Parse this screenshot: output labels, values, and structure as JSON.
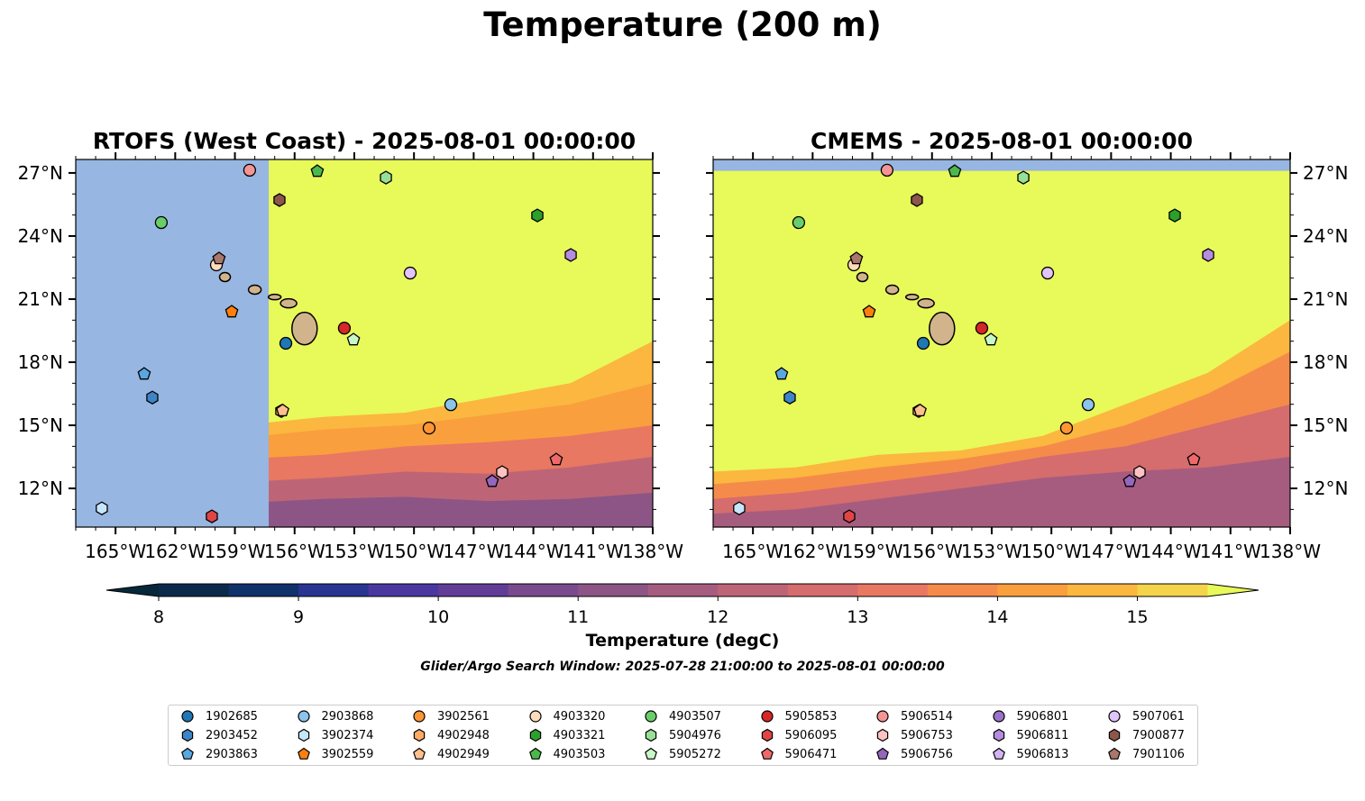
{
  "suptitle": "Temperature (200 m)",
  "panels": [
    {
      "title": "RTOFS (West Coast) - 2025-08-01 00:00:00",
      "model": "RTOFS",
      "missing_west_of_lon": -157.3
    },
    {
      "title": "CMEMS - 2025-08-01 00:00:00",
      "model": "CMEMS",
      "missing_north_of_lat": 27.1
    }
  ],
  "chart_data": {
    "type": "heatmap",
    "title": "Temperature (200 m)",
    "xlabel": "",
    "ylabel": "",
    "xlim": [
      -167.0,
      -138.0
    ],
    "ylim": [
      10.16,
      27.64
    ],
    "x_ticks": [
      -165,
      -162,
      -159,
      -156,
      -153,
      -150,
      -147,
      -144,
      -141,
      -138
    ],
    "x_tick_labels": [
      "165°W",
      "162°W",
      "159°W",
      "156°W",
      "153°W",
      "150°W",
      "147°W",
      "144°W",
      "141°W",
      "138°W"
    ],
    "y_ticks": [
      12,
      15,
      18,
      21,
      24,
      27
    ],
    "y_tick_labels": [
      "12°N",
      "15°N",
      "18°N",
      "21°N",
      "24°N",
      "27°N"
    ],
    "grid": false,
    "colorbar": {
      "label": "Temperature (degC)",
      "min": 8,
      "max": 15.5,
      "step": 0.5,
      "extend": "both",
      "ticks": [
        8,
        9,
        10,
        11,
        12,
        13,
        14,
        15
      ],
      "tick_labels": [
        "8",
        "9",
        "10",
        "11",
        "12",
        "13",
        "14",
        "15"
      ],
      "colors": [
        "#07283a",
        "#0b2a4a",
        "#10326a",
        "#283591",
        "#4a38a0",
        "#613d98",
        "#7a4a8e",
        "#8d5586",
        "#a65c7f",
        "#bd6577",
        "#d56c6d",
        "#e87861",
        "#f58b4b",
        "#fa9f3d",
        "#fbb73f",
        "#f5d34a",
        "#e8f95a"
      ],
      "under_color": "#07283a",
      "over_color": "#e8f95a"
    },
    "land_color": "#d2b48c",
    "missing_color": "#97b6e1",
    "subtitle": "Glider/Argo Search Window: 2025-07-28 21:00:00 to 2025-08-01 00:00:00",
    "series": [
      {
        "name": "1902685",
        "marker": "circle",
        "color": "#1f77b4",
        "lon": -156.44,
        "lat": 18.9
      },
      {
        "name": "2903452",
        "marker": "hexagon",
        "color": "#3d85c6",
        "lon": -163.15,
        "lat": 16.32
      },
      {
        "name": "2903863",
        "marker": "pentagon",
        "color": "#5aa7e0",
        "lon": -163.56,
        "lat": 17.44
      },
      {
        "name": "2903868",
        "marker": "circle",
        "color": "#8cc4ec",
        "lon": -148.15,
        "lat": 15.98
      },
      {
        "name": "3902374",
        "marker": "hexagon",
        "color": "#c6e6fb",
        "lon": -165.69,
        "lat": 11.05
      },
      {
        "name": "3902559",
        "marker": "pentagon",
        "color": "#ff7f0e",
        "lon": -159.16,
        "lat": 20.4
      },
      {
        "name": "3902561",
        "marker": "circle",
        "color": "#ff9535",
        "lon": -149.24,
        "lat": 14.87
      },
      {
        "name": "4902948",
        "marker": "hexagon",
        "color": "#ffaa65",
        "lon": -156.67,
        "lat": 15.68
      },
      {
        "name": "4902949",
        "marker": "pentagon",
        "color": "#ffc08e",
        "lon": -156.6,
        "lat": 15.7
      },
      {
        "name": "4903320",
        "marker": "circle",
        "color": "#ffdcbc",
        "lon": -159.93,
        "lat": 22.63
      },
      {
        "name": "4903321",
        "marker": "hexagon",
        "color": "#2ca02c",
        "lon": -143.8,
        "lat": 24.98
      },
      {
        "name": "4903503",
        "marker": "pentagon",
        "color": "#4cb84c",
        "lon": -154.86,
        "lat": 27.08
      },
      {
        "name": "4903507",
        "marker": "circle",
        "color": "#6acd6a",
        "lon": -162.7,
        "lat": 24.64
      },
      {
        "name": "5904976",
        "marker": "hexagon",
        "color": "#98e098",
        "lon": -151.41,
        "lat": 26.78
      },
      {
        "name": "5905272",
        "marker": "pentagon",
        "color": "#c8f7c8",
        "lon": -153.04,
        "lat": 19.07
      },
      {
        "name": "5905853",
        "marker": "circle",
        "color": "#d62728",
        "lon": -153.5,
        "lat": 19.62
      },
      {
        "name": "5906095",
        "marker": "hexagon",
        "color": "#e04545",
        "lon": -160.16,
        "lat": 10.67
      },
      {
        "name": "5906471",
        "marker": "pentagon",
        "color": "#ee6a6a",
        "lon": -142.85,
        "lat": 13.37
      },
      {
        "name": "5906514",
        "marker": "circle",
        "color": "#f59494",
        "lon": -158.26,
        "lat": 27.13
      },
      {
        "name": "5906753",
        "marker": "hexagon",
        "color": "#ffc2c2",
        "lon": -145.57,
        "lat": 12.77
      },
      {
        "name": "5906756",
        "marker": "pentagon",
        "color": "#9467bd",
        "lon": -146.07,
        "lat": 12.34
      },
      {
        "name": "5906801",
        "marker": "circle",
        "color": "#9b72c9",
        "lon": null,
        "lat": null
      },
      {
        "name": "5906811",
        "marker": "hexagon",
        "color": "#b48ce0",
        "lon": -142.12,
        "lat": 23.1
      },
      {
        "name": "5906813",
        "marker": "pentagon",
        "color": "#d2b4f2",
        "lon": null,
        "lat": null
      },
      {
        "name": "5907061",
        "marker": "circle",
        "color": "#e1c4fb",
        "lon": -150.19,
        "lat": 22.24
      },
      {
        "name": "7900877",
        "marker": "hexagon",
        "color": "#8c564b",
        "lon": -156.76,
        "lat": 25.71
      },
      {
        "name": "7901106",
        "marker": "pentagon",
        "color": "#a9776b",
        "lon": -159.8,
        "lat": 22.93
      }
    ]
  },
  "legend": {
    "columns": 9,
    "rows": 3,
    "placement": "bottom-center"
  }
}
